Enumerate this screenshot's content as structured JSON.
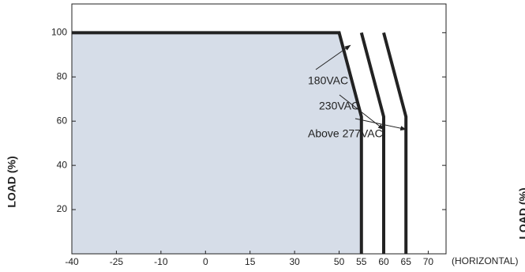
{
  "chart_data": {
    "type": "line",
    "y_label": "LOAD (%)",
    "x_label": "(HORIZONTAL)",
    "xlim": [
      -40,
      74
    ],
    "ylim": [
      0,
      113
    ],
    "xticks": [
      -40,
      -25,
      -10,
      0,
      15,
      30,
      50,
      55,
      60,
      65,
      70
    ],
    "yticks": [
      20,
      40,
      60,
      80,
      100
    ],
    "fill_color": "#d6dde8",
    "series": [
      {
        "name": "180VAC",
        "color": "#222222",
        "fill": true,
        "x": [
          -40,
          50,
          55,
          55
        ],
        "values": [
          100,
          100,
          62,
          0
        ]
      },
      {
        "name": "230VAC",
        "color": "#222222",
        "fill": false,
        "x": [
          55,
          60,
          60
        ],
        "values": [
          100,
          62,
          0
        ]
      },
      {
        "name": "Above 277VAC",
        "color": "#222222",
        "fill": false,
        "x": [
          60,
          65,
          65
        ],
        "values": [
          100,
          62,
          0
        ]
      }
    ]
  }
}
